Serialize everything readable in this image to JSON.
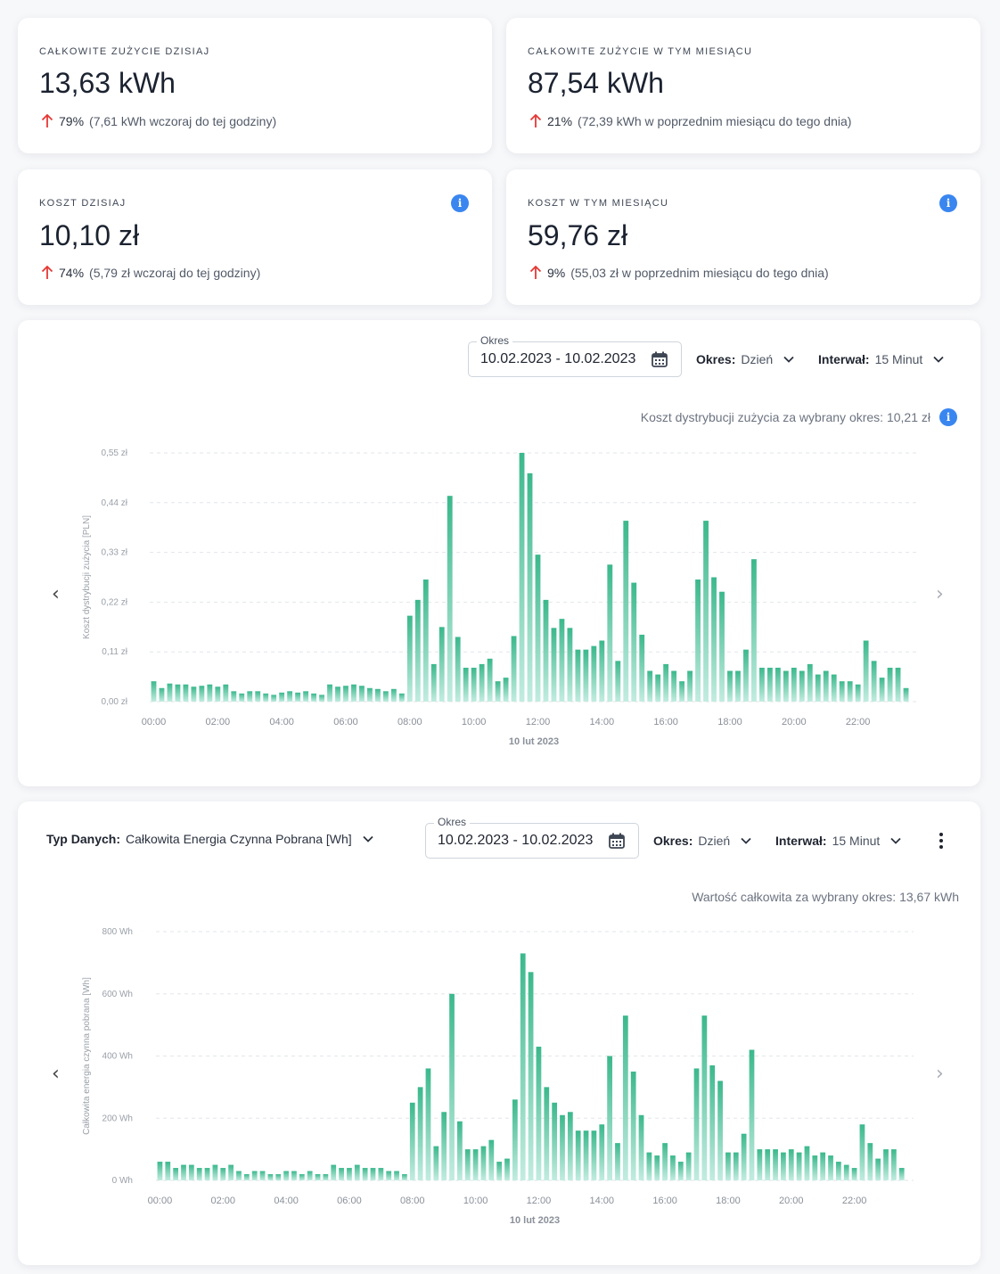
{
  "stats": [
    {
      "title": "CAŁKOWITE ZUŻYCIE DZISIAJ",
      "value": "13,63 kWh",
      "pct": "79%",
      "rest": "(7,61 kWh wczoraj do tej godziny)",
      "info": false
    },
    {
      "title": "CAŁKOWITE ZUŻYCIE W TYM MIESIĄCU",
      "value": "87,54 kWh",
      "pct": "21%",
      "rest": "(72,39 kWh w poprzednim miesiącu do tego dnia)",
      "info": false
    },
    {
      "title": "KOSZT DZISIAJ",
      "value": "10,10 zł",
      "pct": "74%",
      "rest": "(5,79 zł wczoraj do tej godziny)",
      "info": true
    },
    {
      "title": "KOSZT W TYM MIESIĄCU",
      "value": "59,76 zł",
      "pct": "9%",
      "rest": "(55,03 zł w poprzednim miesiącu do tego dnia)",
      "info": true
    }
  ],
  "icons": {
    "info": "info-icon",
    "up": "arrow-up-icon",
    "calendar": "calendar-icon",
    "chevron": "chevron-down-icon",
    "prev": "chevron-left-icon",
    "next": "chevron-right-icon",
    "more": "more-vert-icon"
  },
  "colors": {
    "bar": "#3bb88c",
    "bar_light": "#c2ece0",
    "accent": "#3a86f0",
    "up": "#e53935"
  },
  "cost_panel": {
    "date_label": "Okres",
    "date_value": "10.02.2023 - 10.02.2023",
    "period_label": "Okres:",
    "period_value": "Dzień",
    "interval_label": "Interwał:",
    "interval_value": "15 Minut",
    "summary": "Koszt dystrybucji zużycia za wybrany okres: 10,21 zł",
    "prev": "‹",
    "next": "›"
  },
  "energy_panel": {
    "type_label": "Typ Danych:",
    "type_value": "Całkowita Energia Czynna Pobrana [Wh]",
    "date_label": "Okres",
    "date_value": "10.02.2023 - 10.02.2023",
    "period_label": "Okres:",
    "period_value": "Dzień",
    "interval_label": "Interwał:",
    "interval_value": "15 Minut",
    "summary": "Wartość całkowita za wybrany okres: 13,67 kWh",
    "prev": "‹",
    "next": "›"
  },
  "chart_data": [
    {
      "type": "bar",
      "title": "",
      "xlabel": "10 lut 2023",
      "ylabel": "Koszt dystrybucji zużycia [PLN]",
      "ylim": [
        0,
        0.55
      ],
      "yticks": [
        0,
        0.11,
        0.22,
        0.33,
        0.44,
        0.55
      ],
      "ytick_labels": [
        "0,00 zł",
        "0,11 zł",
        "0,22 zł",
        "0,33 zł",
        "0,44 zł",
        "0,55 zł"
      ],
      "xtick_labels": [
        "00:00",
        "02:00",
        "04:00",
        "06:00",
        "08:00",
        "10:00",
        "12:00",
        "14:00",
        "16:00",
        "18:00",
        "20:00",
        "22:00"
      ],
      "values": [
        0.045,
        0.03,
        0.04,
        0.038,
        0.038,
        0.033,
        0.035,
        0.038,
        0.033,
        0.038,
        0.023,
        0.018,
        0.023,
        0.023,
        0.018,
        0.015,
        0.02,
        0.023,
        0.02,
        0.023,
        0.018,
        0.015,
        0.038,
        0.033,
        0.035,
        0.038,
        0.035,
        0.03,
        0.028,
        0.023,
        0.028,
        0.018,
        0.19,
        0.225,
        0.27,
        0.083,
        0.165,
        0.455,
        0.143,
        0.075,
        0.075,
        0.083,
        0.095,
        0.045,
        0.053,
        0.145,
        0.55,
        0.505,
        0.325,
        0.225,
        0.163,
        0.183,
        0.163,
        0.115,
        0.115,
        0.123,
        0.135,
        0.303,
        0.09,
        0.4,
        0.263,
        0.148,
        0.068,
        0.06,
        0.083,
        0.068,
        0.045,
        0.068,
        0.27,
        0.4,
        0.275,
        0.243,
        0.068,
        0.068,
        0.115,
        0.315,
        0.075,
        0.075,
        0.075,
        0.068,
        0.075,
        0.068,
        0.083,
        0.06,
        0.068,
        0.06,
        0.045,
        0.045,
        0.038,
        0.135,
        0.09,
        0.053,
        0.075,
        0.075,
        0.03
      ]
    },
    {
      "type": "bar",
      "title": "",
      "xlabel": "10 lut 2023",
      "ylabel": "Całkowita energia czynna pobrana [Wh]",
      "ylim": [
        0,
        800
      ],
      "yticks": [
        0,
        200,
        400,
        600,
        800
      ],
      "ytick_labels": [
        "0 Wh",
        "200 Wh",
        "400 Wh",
        "600 Wh",
        "800 Wh"
      ],
      "xtick_labels": [
        "00:00",
        "02:00",
        "04:00",
        "06:00",
        "08:00",
        "10:00",
        "12:00",
        "14:00",
        "16:00",
        "18:00",
        "20:00",
        "22:00"
      ],
      "values": [
        60,
        60,
        40,
        50,
        50,
        40,
        40,
        50,
        40,
        50,
        30,
        20,
        30,
        30,
        20,
        20,
        30,
        30,
        20,
        30,
        20,
        20,
        50,
        40,
        40,
        50,
        40,
        40,
        40,
        30,
        30,
        20,
        250,
        300,
        360,
        110,
        220,
        600,
        190,
        100,
        100,
        110,
        130,
        60,
        70,
        260,
        730,
        670,
        430,
        300,
        250,
        210,
        220,
        160,
        160,
        160,
        180,
        400,
        120,
        530,
        350,
        210,
        90,
        80,
        120,
        80,
        60,
        90,
        360,
        530,
        370,
        320,
        90,
        90,
        150,
        420,
        100,
        100,
        100,
        90,
        100,
        90,
        110,
        80,
        90,
        80,
        60,
        50,
        40,
        180,
        120,
        70,
        100,
        100,
        40
      ]
    }
  ]
}
